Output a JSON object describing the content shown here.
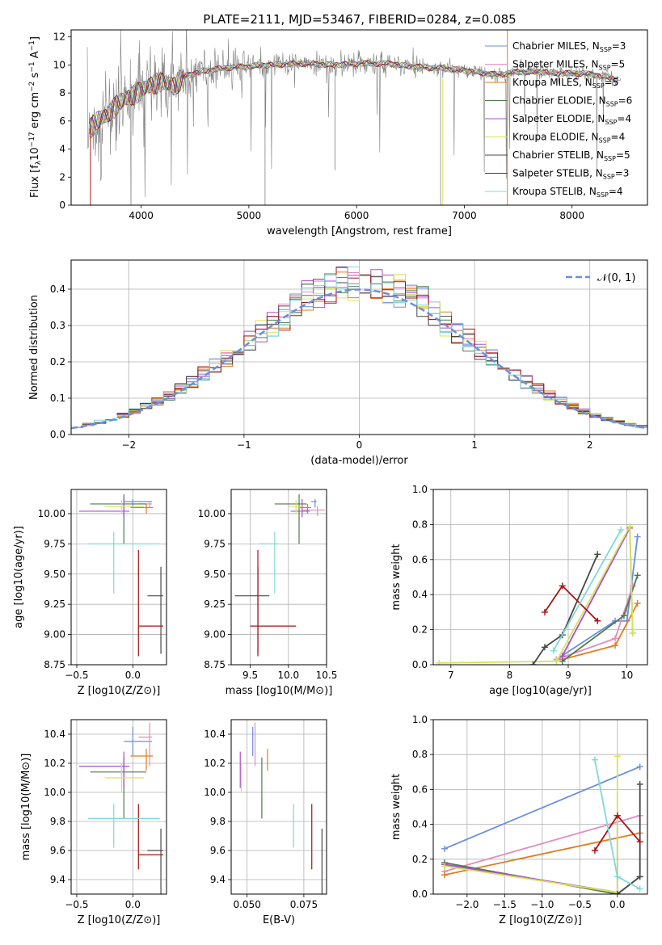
{
  "title": "PLATE=2111, MJD=53467, FIBERID=0284, z=0.085",
  "colors": {
    "chabrier_miles": "#6a8fdc",
    "salpeter_miles": "#e58cbb",
    "kroupa_miles": "#e27b1d",
    "chabrier_elodie": "#4f7a4f",
    "salpeter_elodie": "#a84fcf",
    "kroupa_elodie": "#d6e35a",
    "chabrier_stelib": "#474747",
    "salpeter_stelib": "#a81414",
    "kroupa_stelib": "#7fd9d9",
    "spectrum": "#808080"
  },
  "legend_spectrum": [
    {
      "key": "chabrier_miles",
      "text": "Chabrier MILES, N",
      "n": "3"
    },
    {
      "key": "salpeter_miles",
      "text": "Salpeter MILES, N",
      "n": "5"
    },
    {
      "key": "kroupa_miles",
      "text": "Kroupa MILES, N",
      "n": "5"
    },
    {
      "key": "chabrier_elodie",
      "text": "Chabrier ELODIE, N",
      "n": "6"
    },
    {
      "key": "salpeter_elodie",
      "text": "Salpeter ELODIE, N",
      "n": "4"
    },
    {
      "key": "kroupa_elodie",
      "text": "Kroupa ELODIE, N",
      "n": "4"
    },
    {
      "key": "chabrier_stelib",
      "text": "Chabrier STELIB, N",
      "n": "5"
    },
    {
      "key": "salpeter_stelib",
      "text": "Salpeter STELIB, N",
      "n": "3"
    },
    {
      "key": "kroupa_stelib",
      "text": "Kroupa STELIB, N",
      "n": "4"
    }
  ],
  "legend_sub": "SSP",
  "chart_data": [
    {
      "id": "spectrum",
      "type": "line",
      "xlabel": "wavelength [Angstrom, rest frame]",
      "ylabel": "Flux [f",
      "ylabel_parts": [
        "Flux [f",
        "λ",
        "10",
        "−17",
        " erg cm",
        "−2",
        " s",
        "−1",
        " A",
        "−1",
        "]"
      ],
      "xlim": [
        3350,
        8700
      ],
      "ylim": [
        0,
        12.5
      ],
      "xticks": [
        4000,
        5000,
        6000,
        7000,
        8000
      ],
      "yticks": [
        0,
        2,
        4,
        6,
        8,
        10,
        12
      ],
      "continuum": [
        [
          3500,
          5.2
        ],
        [
          3600,
          6.0
        ],
        [
          3700,
          6.6
        ],
        [
          3800,
          7.3
        ],
        [
          3900,
          7.8
        ],
        [
          4000,
          8.2
        ],
        [
          4100,
          8.6
        ],
        [
          4200,
          8.9
        ],
        [
          4300,
          8.4
        ],
        [
          4400,
          9.2
        ],
        [
          4600,
          9.6
        ],
        [
          4800,
          9.8
        ],
        [
          5000,
          9.9
        ],
        [
          5200,
          10.0
        ],
        [
          5500,
          10.1
        ],
        [
          5800,
          10.0
        ],
        [
          6000,
          10.1
        ],
        [
          6300,
          10.1
        ],
        [
          6500,
          9.9
        ],
        [
          6700,
          9.8
        ],
        [
          6900,
          9.7
        ],
        [
          7100,
          9.5
        ],
        [
          7300,
          9.3
        ],
        [
          7500,
          9.5
        ],
        [
          7700,
          9.5
        ],
        [
          7900,
          9.4
        ],
        [
          8100,
          9.4
        ],
        [
          8300,
          9.2
        ],
        [
          8450,
          8.9
        ]
      ]
    },
    {
      "id": "residuals",
      "type": "step",
      "xlabel": "(data-model)/error",
      "ylabel": "Normed distribution",
      "xlim": [
        -2.5,
        2.5
      ],
      "ylim": [
        0,
        0.48
      ],
      "xticks": [
        -2,
        -1,
        0,
        1,
        2
      ],
      "yticks": [
        0.0,
        0.1,
        0.2,
        0.3,
        0.4
      ],
      "gaussian_label": "𝒩(0, 1)",
      "bin_width": 0.1
    },
    {
      "id": "age_vs_Z",
      "type": "errorbar",
      "xlabel": "Z [log10(Z/Z⊙)]",
      "ylabel": "age  [log10(age/yr)]",
      "xlim": [
        -0.55,
        0.3
      ],
      "ylim": [
        8.75,
        10.2
      ],
      "xticks": [
        -0.5,
        0.0
      ],
      "yticks": [
        8.75,
        9.0,
        9.25,
        9.5,
        9.75,
        10.0
      ],
      "points": [
        {
          "key": "chabrier_miles",
          "x": 0.0,
          "xerr": [
            0.08,
            0.17
          ],
          "y": 10.1,
          "yerr": [
            0.05,
            0.02
          ]
        },
        {
          "key": "salpeter_miles",
          "x": 0.15,
          "xerr": [
            0.1,
            0.02
          ],
          "y": 10.08,
          "yerr": [
            0.03,
            0.02
          ]
        },
        {
          "key": "kroupa_miles",
          "x": 0.12,
          "xerr": [
            0.14,
            0.06
          ],
          "y": 10.05,
          "yerr": [
            0.05,
            0.03
          ]
        },
        {
          "key": "chabrier_elodie",
          "x": -0.08,
          "xerr": [
            0.3,
            0.2
          ],
          "y": 10.08,
          "yerr": [
            0.33,
            0.08
          ]
        },
        {
          "key": "salpeter_elodie",
          "x": -0.08,
          "xerr": [
            0.4,
            0.05
          ],
          "y": 10.02,
          "yerr": [
            0.05,
            0.1
          ]
        },
        {
          "key": "kroupa_elodie",
          "x": -0.1,
          "xerr": [
            0.15,
            0.2
          ],
          "y": 10.06,
          "yerr": [
            0.06,
            0.05
          ]
        },
        {
          "key": "chabrier_stelib",
          "x": 0.25,
          "xerr": [
            0.12,
            0.02
          ],
          "y": 9.32,
          "yerr": [
            0.48,
            0.24
          ]
        },
        {
          "key": "salpeter_stelib",
          "x": 0.05,
          "xerr": [
            0.0,
            0.22
          ],
          "y": 9.07,
          "yerr": [
            0.25,
            0.63
          ]
        },
        {
          "key": "kroupa_stelib",
          "x": -0.17,
          "xerr": [
            0.23,
            0.41
          ],
          "y": 9.75,
          "yerr": [
            0.41,
            0.1
          ]
        }
      ]
    },
    {
      "id": "age_vs_mass",
      "type": "errorbar",
      "xlabel": "mass [log10(M/M⊙)]",
      "ylabel": "",
      "xlim": [
        9.25,
        10.5
      ],
      "ylim": [
        8.75,
        10.2
      ],
      "xticks": [
        9.5,
        10.0,
        10.5
      ],
      "yticks": [
        8.75,
        9.0,
        9.25,
        9.5,
        9.75,
        10.0
      ],
      "points": [
        {
          "key": "chabrier_miles",
          "x": 10.35,
          "xerr": [
            0.05,
            0.02
          ],
          "y": 10.1,
          "yerr": [
            0.05,
            0.02
          ]
        },
        {
          "key": "salpeter_miles",
          "x": 10.38,
          "xerr": [
            0.2,
            0.1
          ],
          "y": 10.03,
          "yerr": [
            0.05,
            0.03
          ]
        },
        {
          "key": "kroupa_miles",
          "x": 10.25,
          "xerr": [
            0.1,
            0.05
          ],
          "y": 10.05,
          "yerr": [
            0.05,
            0.03
          ]
        },
        {
          "key": "chabrier_elodie",
          "x": 10.14,
          "xerr": [
            0.32,
            0.1
          ],
          "y": 10.08,
          "yerr": [
            0.33,
            0.08
          ]
        },
        {
          "key": "salpeter_elodie",
          "x": 10.18,
          "xerr": [
            0.15,
            0.1
          ],
          "y": 10.02,
          "yerr": [
            0.05,
            0.1
          ]
        },
        {
          "key": "kroupa_elodie",
          "x": 10.1,
          "xerr": [
            0.1,
            0.1
          ],
          "y": 10.06,
          "yerr": [
            0.06,
            0.05
          ]
        },
        {
          "key": "chabrier_stelib",
          "x": 9.6,
          "xerr": [
            0.3,
            0.15
          ],
          "y": 9.32,
          "yerr": [
            0.48,
            0.24
          ]
        },
        {
          "key": "salpeter_stelib",
          "x": 9.6,
          "xerr": [
            0.1,
            0.5
          ],
          "y": 9.07,
          "yerr": [
            0.25,
            0.63
          ]
        },
        {
          "key": "kroupa_stelib",
          "x": 9.82,
          "xerr": [
            0.2,
            0.05
          ],
          "y": 9.75,
          "yerr": [
            0.41,
            0.1
          ]
        }
      ]
    },
    {
      "id": "mass_weight_vs_age",
      "type": "line",
      "xlabel": "age  [log10(age/yr)]",
      "ylabel": "mass weight",
      "xlim": [
        6.7,
        10.35
      ],
      "ylim": [
        0,
        1
      ],
      "xticks": [
        7,
        8,
        9,
        10
      ],
      "yticks": [
        0.0,
        0.2,
        0.4,
        0.6,
        0.8,
        1.0
      ],
      "series": [
        {
          "key": "chabrier_miles",
          "points": [
            [
              8.8,
              0.03
            ],
            [
              9.8,
              0.25
            ],
            [
              10.0,
              0.25
            ],
            [
              10.18,
              0.73
            ]
          ]
        },
        {
          "key": "salpeter_miles",
          "points": [
            [
              8.8,
              0.03
            ],
            [
              9.8,
              0.15
            ],
            [
              10.1,
              0.45
            ]
          ]
        },
        {
          "key": "kroupa_miles",
          "points": [
            [
              8.9,
              0.03
            ],
            [
              9.8,
              0.11
            ],
            [
              10.18,
              0.35
            ]
          ]
        },
        {
          "key": "chabrier_elodie",
          "points": [
            [
              8.9,
              0.02
            ],
            [
              9.95,
              0.28
            ],
            [
              10.18,
              0.51
            ]
          ]
        },
        {
          "key": "salpeter_elodie",
          "points": [
            [
              8.9,
              0.05
            ],
            [
              10.05,
              0.78
            ],
            [
              10.1,
              0.18
            ]
          ]
        },
        {
          "key": "kroupa_elodie",
          "points": [
            [
              6.8,
              0.01
            ],
            [
              8.8,
              0.02
            ],
            [
              10.05,
              0.79
            ],
            [
              10.1,
              0.18
            ]
          ]
        },
        {
          "key": "chabrier_stelib",
          "points": [
            [
              8.4,
              0.0
            ],
            [
              8.6,
              0.1
            ],
            [
              8.9,
              0.17
            ],
            [
              9.5,
              0.63
            ]
          ]
        },
        {
          "key": "salpeter_stelib",
          "points": [
            [
              8.6,
              0.3
            ],
            [
              8.9,
              0.45
            ],
            [
              9.5,
              0.25
            ]
          ]
        },
        {
          "key": "kroupa_stelib",
          "points": [
            [
              8.75,
              0.08
            ],
            [
              9.9,
              0.77
            ]
          ]
        }
      ]
    },
    {
      "id": "mass_vs_Z",
      "type": "errorbar",
      "xlabel": "Z [log10(Z/Z⊙)]",
      "ylabel": "mass [log10(M/M⊙)]",
      "xlim": [
        -0.55,
        0.3
      ],
      "ylim": [
        9.3,
        10.5
      ],
      "xticks": [
        -0.5,
        0.0
      ],
      "yticks": [
        9.4,
        9.6,
        9.8,
        10.0,
        10.2,
        10.4
      ],
      "points": [
        {
          "key": "chabrier_miles",
          "x": 0.0,
          "xerr": [
            0.08,
            0.17
          ],
          "y": 10.35,
          "yerr": [
            0.1,
            0.1
          ]
        },
        {
          "key": "salpeter_miles",
          "x": 0.15,
          "xerr": [
            0.1,
            0.02
          ],
          "y": 10.38,
          "yerr": [
            0.2,
            0.1
          ]
        },
        {
          "key": "kroupa_miles",
          "x": 0.12,
          "xerr": [
            0.14,
            0.06
          ],
          "y": 10.25,
          "yerr": [
            0.1,
            0.05
          ]
        },
        {
          "key": "chabrier_elodie",
          "x": -0.08,
          "xerr": [
            0.3,
            0.2
          ],
          "y": 10.14,
          "yerr": [
            0.32,
            0.1
          ]
        },
        {
          "key": "salpeter_elodie",
          "x": -0.08,
          "xerr": [
            0.4,
            0.05
          ],
          "y": 10.18,
          "yerr": [
            0.15,
            0.1
          ]
        },
        {
          "key": "kroupa_elodie",
          "x": -0.1,
          "xerr": [
            0.15,
            0.2
          ],
          "y": 10.1,
          "yerr": [
            0.1,
            0.1
          ]
        },
        {
          "key": "chabrier_stelib",
          "x": 0.25,
          "xerr": [
            0.12,
            0.02
          ],
          "y": 9.6,
          "yerr": [
            0.3,
            0.15
          ]
        },
        {
          "key": "salpeter_stelib",
          "x": 0.05,
          "xerr": [
            0.0,
            0.22
          ],
          "y": 9.57,
          "yerr": [
            0.1,
            0.35
          ]
        },
        {
          "key": "kroupa_stelib",
          "x": -0.17,
          "xerr": [
            0.23,
            0.41
          ],
          "y": 9.82,
          "yerr": [
            0.2,
            0.1
          ]
        }
      ]
    },
    {
      "id": "mass_vs_ebv",
      "type": "errorbar",
      "xlabel": "E(B-V)",
      "ylabel": "",
      "xlim": [
        0.043,
        0.085
      ],
      "ylim": [
        9.3,
        10.5
      ],
      "xticks": [
        0.05,
        0.075
      ],
      "xticklabels": [
        "0.050",
        "0.075"
      ],
      "yticks": [
        9.4,
        9.6,
        9.8,
        10.0,
        10.2,
        10.4
      ],
      "points": [
        {
          "key": "chabrier_miles",
          "x": 0.0525,
          "y": 10.35,
          "yerr": [
            0.1,
            0.1
          ]
        },
        {
          "key": "salpeter_miles",
          "x": 0.0535,
          "y": 10.38,
          "yerr": [
            0.2,
            0.1
          ]
        },
        {
          "key": "kroupa_miles",
          "x": 0.059,
          "y": 10.25,
          "yerr": [
            0.1,
            0.05
          ]
        },
        {
          "key": "chabrier_elodie",
          "x": 0.0565,
          "y": 10.14,
          "yerr": [
            0.32,
            0.1
          ]
        },
        {
          "key": "salpeter_elodie",
          "x": 0.047,
          "y": 10.18,
          "yerr": [
            0.15,
            0.1
          ]
        },
        {
          "key": "kroupa_elodie",
          "x": 0.0475,
          "y": 10.1,
          "yerr": [
            0.1,
            0.1
          ]
        },
        {
          "key": "chabrier_stelib",
          "x": 0.083,
          "y": 9.6,
          "yerr": [
            0.3,
            0.15
          ]
        },
        {
          "key": "salpeter_stelib",
          "x": 0.0785,
          "y": 9.57,
          "yerr": [
            0.1,
            0.35
          ]
        },
        {
          "key": "kroupa_stelib",
          "x": 0.0705,
          "y": 9.82,
          "yerr": [
            0.2,
            0.1
          ]
        }
      ]
    },
    {
      "id": "mass_weight_vs_Z",
      "type": "line",
      "xlabel": "Z [log10(Z/Z⊙)]",
      "ylabel": "mass weight",
      "xlim": [
        -2.45,
        0.4
      ],
      "ylim": [
        0,
        1
      ],
      "xticks": [
        -2.0,
        -1.5,
        -1.0,
        -0.5,
        0.0
      ],
      "yticks": [
        0.0,
        0.2,
        0.4,
        0.6,
        0.8,
        1.0
      ],
      "series": [
        {
          "key": "chabrier_miles",
          "points": [
            [
              -2.3,
              0.26
            ],
            [
              0.3,
              0.73
            ]
          ]
        },
        {
          "key": "salpeter_miles",
          "points": [
            [
              -2.3,
              0.13
            ],
            [
              0.3,
              0.45
            ]
          ]
        },
        {
          "key": "kroupa_miles",
          "points": [
            [
              -2.3,
              0.11
            ],
            [
              0.3,
              0.35
            ]
          ]
        },
        {
          "key": "chabrier_elodie",
          "points": [
            [
              -2.3,
              0.18
            ],
            [
              0.0,
              0.0
            ],
            [
              0.3,
              0.1
            ]
          ]
        },
        {
          "key": "salpeter_elodie",
          "points": [
            [
              -2.3,
              0.17
            ],
            [
              0.0,
              0.01
            ],
            [
              0.0,
              0.45
            ]
          ]
        },
        {
          "key": "kroupa_elodie",
          "points": [
            [
              -2.3,
              0.16
            ],
            [
              0.0,
              0.01
            ],
            [
              0.0,
              0.79
            ]
          ]
        },
        {
          "key": "chabrier_stelib",
          "points": [
            [
              0.0,
              0.0
            ],
            [
              0.3,
              0.1
            ],
            [
              0.3,
              0.63
            ]
          ]
        },
        {
          "key": "salpeter_stelib",
          "points": [
            [
              -0.3,
              0.25
            ],
            [
              0.0,
              0.45
            ],
            [
              0.3,
              0.3
            ]
          ]
        },
        {
          "key": "kroupa_stelib",
          "points": [
            [
              -0.3,
              0.77
            ],
            [
              0.0,
              0.1
            ],
            [
              0.3,
              0.03
            ]
          ]
        }
      ]
    }
  ]
}
